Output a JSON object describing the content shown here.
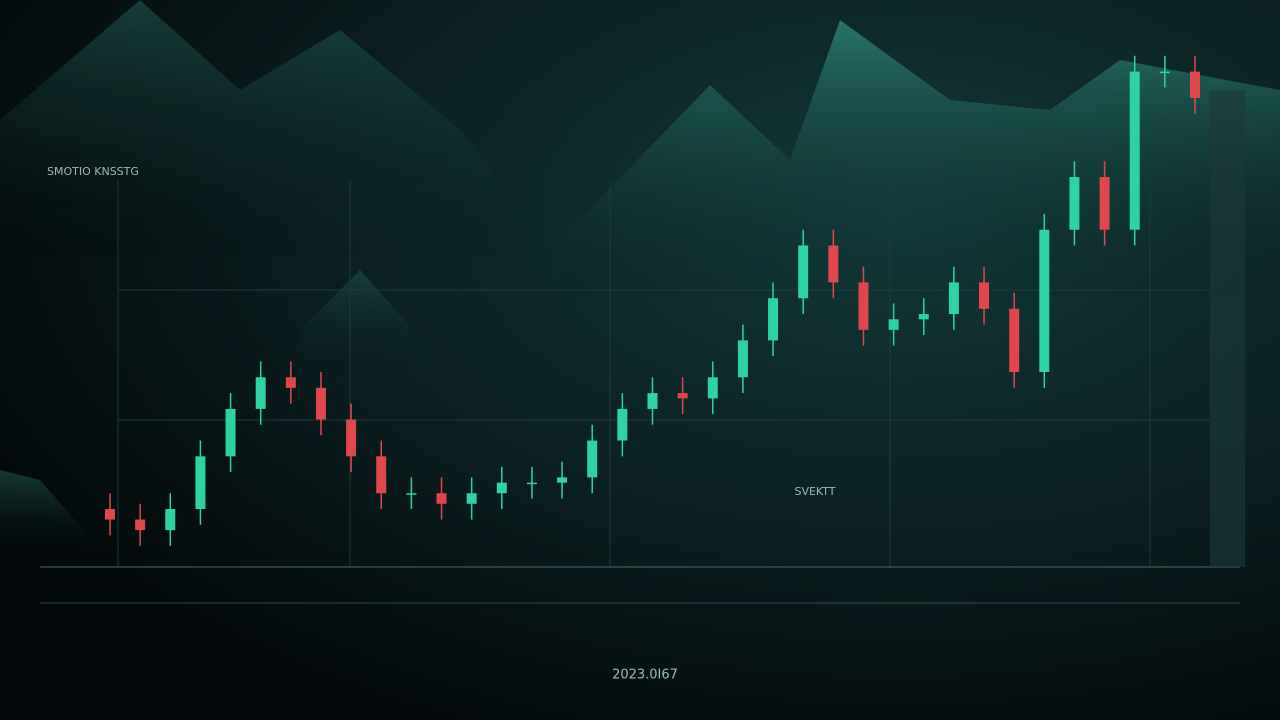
{
  "chart_data": {
    "type": "candlestick",
    "title": "SMOTIO KNSSTG",
    "annotation": "SVEKTT",
    "footer": "2023.0I67",
    "ylim": [
      0,
      100
    ],
    "up_color": "#2ed3a3",
    "down_color": "#e0474c",
    "open": [
      11,
      9,
      7,
      11,
      21,
      30,
      36,
      34,
      28,
      21,
      14,
      14,
      12,
      14,
      16,
      16,
      17,
      24,
      30,
      33,
      32,
      36,
      43,
      51,
      61,
      54,
      45,
      47,
      48,
      54,
      49,
      37,
      64,
      74,
      64,
      94,
      94
    ],
    "high": [
      14,
      12,
      14,
      24,
      33,
      39,
      39,
      37,
      31,
      24,
      17,
      17,
      17,
      19,
      19,
      20,
      27,
      33,
      36,
      36,
      39,
      46,
      54,
      64,
      64,
      57,
      50,
      51,
      57,
      57,
      52,
      67,
      77,
      77,
      97,
      97,
      97
    ],
    "low": [
      6,
      4,
      4,
      8,
      18,
      27,
      31,
      25,
      18,
      11,
      11,
      9,
      9,
      11,
      13,
      13,
      14,
      21,
      27,
      29,
      29,
      33,
      40,
      48,
      51,
      42,
      42,
      44,
      45,
      46,
      34,
      34,
      61,
      61,
      61,
      91,
      86
    ],
    "close": [
      9,
      7,
      11,
      21,
      30,
      36,
      34,
      28,
      21,
      14,
      14,
      12,
      14,
      16,
      16,
      17,
      24,
      30,
      33,
      32,
      36,
      43,
      51,
      61,
      54,
      45,
      47,
      48,
      54,
      49,
      37,
      64,
      74,
      64,
      94,
      94,
      89
    ]
  }
}
